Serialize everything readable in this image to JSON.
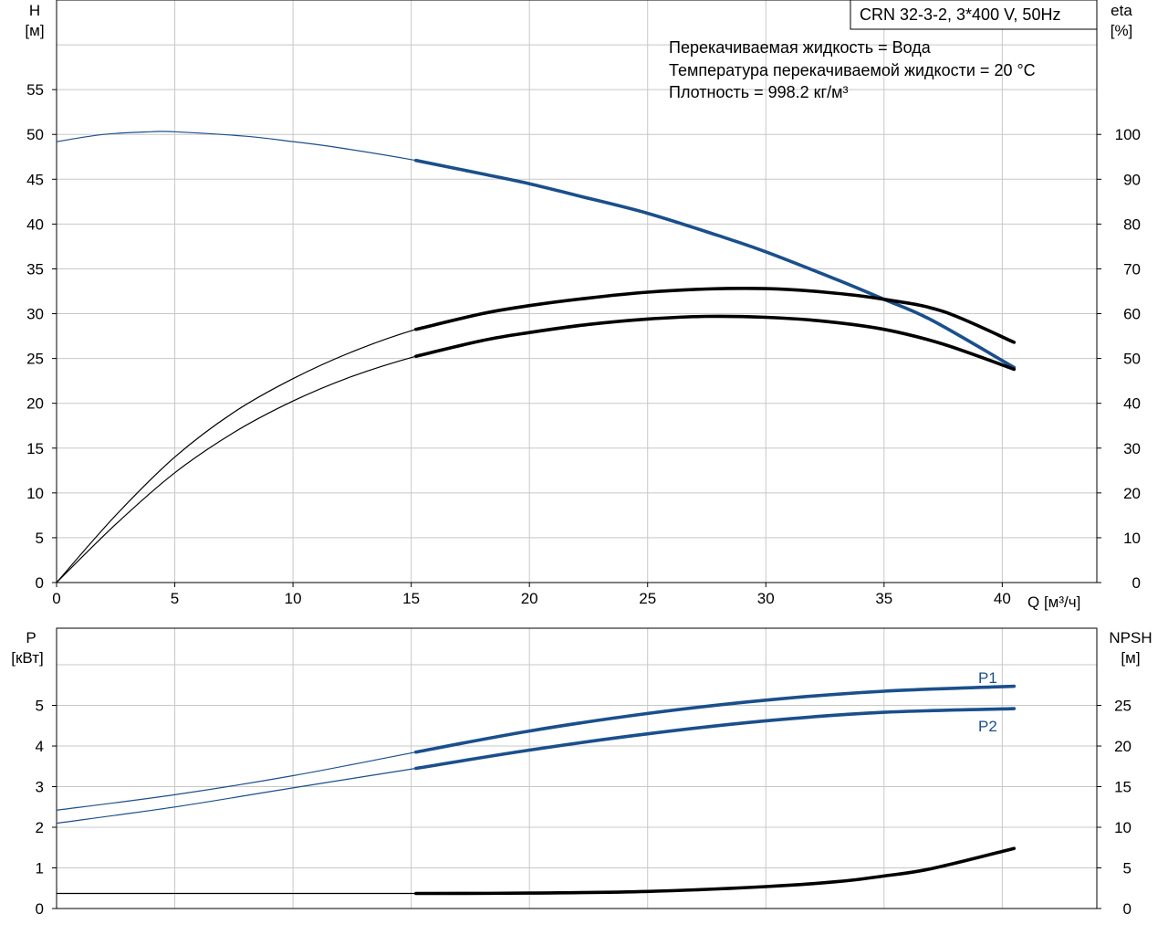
{
  "colors": {
    "blue": "#1a4f8c",
    "black": "#000000",
    "grid": "#c8c8c8"
  },
  "chart_data": [
    {
      "type": "line",
      "title": "CRN 32-3-2, 3*400 V, 50Hz",
      "info": [
        "Перекачиваемая жидкость = Вода",
        "Температура перекачиваемой жидкости = 20 °C",
        "Плотность = 998.2 кг/м³"
      ],
      "xlabel": "Q [м³/ч]",
      "ylabel_left_1": "H",
      "ylabel_left_2": "[м]",
      "ylabel_right_1": "eta",
      "ylabel_right_2": "[%]",
      "xlim": [
        0,
        44
      ],
      "ylim_left": [
        0,
        65
      ],
      "ylim_right": [
        0,
        130
      ],
      "x_ticks": [
        0,
        5,
        10,
        15,
        20,
        25,
        30,
        35,
        40
      ],
      "y_ticks_left": [
        0,
        5,
        10,
        15,
        20,
        25,
        30,
        35,
        40,
        45,
        50,
        55
      ],
      "y_ticks_right": [
        0,
        10,
        20,
        30,
        40,
        50,
        60,
        70,
        80,
        90,
        100
      ],
      "operating_range": [
        15.2,
        40.5
      ],
      "grid": true,
      "series": [
        {
          "axis": "left",
          "color": "blue",
          "x": [
            0,
            2,
            4,
            5,
            8,
            10,
            12,
            15.2,
            18,
            20,
            22,
            25,
            28,
            30,
            33,
            35,
            37,
            40.5
          ],
          "y": [
            49.2,
            50.0,
            50.3,
            50.3,
            49.8,
            49.2,
            48.5,
            47.1,
            45.6,
            44.5,
            43.2,
            41.2,
            38.7,
            36.9,
            33.8,
            31.6,
            29.3,
            24.0
          ]
        },
        {
          "axis": "right",
          "color": "black",
          "x": [
            0,
            2.5,
            5,
            7.5,
            10,
            12.5,
            15.2,
            18,
            20,
            22.5,
            25,
            27.5,
            30,
            32.5,
            35,
            37.5,
            40.5
          ],
          "y": [
            0,
            15,
            28,
            38,
            45.5,
            51.5,
            56.5,
            60,
            61.8,
            63.5,
            64.8,
            65.5,
            65.6,
            64.8,
            63.2,
            60.5,
            53.6
          ]
        },
        {
          "axis": "right",
          "color": "black",
          "x": [
            0,
            2.5,
            5,
            7.5,
            10,
            12.5,
            15.2,
            18,
            20,
            22.5,
            25,
            27.5,
            30,
            32.5,
            35,
            37.5,
            40.5
          ],
          "y": [
            0,
            13,
            24.5,
            33.5,
            40.5,
            46,
            50.5,
            54,
            55.8,
            57.6,
            58.8,
            59.4,
            59.2,
            58.3,
            56.5,
            53.2,
            47.6
          ]
        }
      ]
    },
    {
      "type": "line",
      "ylabel_left_1": "P",
      "ylabel_left_2": "[кВт]",
      "ylabel_right_1": "NPSH",
      "ylabel_right_2": "[м]",
      "xlim": [
        0,
        44
      ],
      "ylim_left": [
        0,
        6.9
      ],
      "ylim_right": [
        0,
        34.5
      ],
      "y_ticks_left": [
        0,
        1,
        2,
        3,
        4,
        5
      ],
      "y_ticks_right": [
        0,
        5,
        10,
        15,
        20,
        25
      ],
      "operating_range": [
        15.2,
        40.5
      ],
      "grid": true,
      "series": [
        {
          "name": "P1",
          "axis": "left",
          "color": "blue",
          "x": [
            0,
            5,
            10,
            15.2,
            20,
            25,
            30,
            35,
            40.5
          ],
          "y": [
            2.42,
            2.8,
            3.27,
            3.85,
            4.37,
            4.8,
            5.13,
            5.35,
            5.47
          ]
        },
        {
          "name": "P2",
          "axis": "left",
          "color": "blue",
          "x": [
            0,
            5,
            10,
            15.2,
            20,
            25,
            30,
            35,
            40.5
          ],
          "y": [
            2.1,
            2.5,
            2.97,
            3.45,
            3.9,
            4.3,
            4.62,
            4.83,
            4.92
          ]
        },
        {
          "axis": "right",
          "color": "black",
          "x": [
            0,
            5,
            10,
            15.2,
            20,
            25,
            30,
            33,
            35,
            37,
            40.5
          ],
          "y": [
            1.85,
            1.85,
            1.85,
            1.85,
            1.9,
            2.1,
            2.7,
            3.3,
            4.0,
            4.9,
            7.4
          ]
        }
      ]
    }
  ]
}
